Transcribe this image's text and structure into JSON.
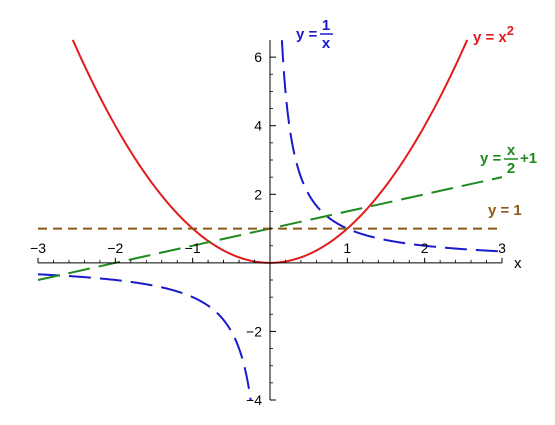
{
  "chart_data": {
    "type": "line",
    "title": "",
    "xlabel": "x",
    "ylabel": "",
    "xlim": [
      -3,
      3
    ],
    "ylim": [
      -4,
      6.5
    ],
    "grid": false,
    "x_ticks": [
      -3,
      -2,
      -1,
      1,
      2,
      3
    ],
    "x_tick_labels": [
      "−3",
      "−2",
      "−1",
      "1",
      "2",
      "3"
    ],
    "y_ticks": [
      -4,
      -2,
      2,
      4,
      6
    ],
    "y_tick_labels": [
      "−4",
      "−2",
      "2",
      "4",
      "6"
    ],
    "series": [
      {
        "name": "y = x²",
        "label_parts": {
          "left": "y = x",
          "exponent": "2"
        },
        "color": "#e31b1b",
        "dash": "solid",
        "x": [
          -2.55,
          -2.0,
          -1.5,
          -1.0,
          -0.5,
          0.0,
          0.5,
          1.0,
          1.5,
          2.0,
          2.55
        ],
        "y": [
          6.5,
          4.0,
          2.25,
          1.0,
          0.25,
          0.0,
          0.25,
          1.0,
          2.25,
          4.0,
          6.5
        ]
      },
      {
        "name": "y = 1/x",
        "label_parts": {
          "left": "y =",
          "numerator": "1",
          "denominator": "x"
        },
        "color": "#1a1acd",
        "dash": "long-dash",
        "x": [
          -3.0,
          -2.0,
          -1.0,
          -0.5,
          -0.33,
          -0.25,
          0.154,
          0.25,
          0.5,
          1.0,
          2.0,
          3.0
        ],
        "y": [
          -0.333,
          -0.5,
          -1.0,
          -2.0,
          -3.0,
          -4.0,
          6.5,
          4.0,
          2.0,
          1.0,
          0.5,
          0.333
        ]
      },
      {
        "name": "y = x/2 + 1",
        "label_parts": {
          "left": "y =",
          "numerator": "x",
          "denominator": "2",
          "right": "+1"
        },
        "color": "#1e8a1e",
        "dash": "long-dash",
        "x": [
          -3,
          3
        ],
        "y": [
          -0.5,
          2.5
        ]
      },
      {
        "name": "y = 1",
        "label_parts": {
          "left": "y = 1"
        },
        "color": "#8b5a1a",
        "dash": "short-dash",
        "x": [
          -3,
          3
        ],
        "y": [
          1,
          1
        ]
      }
    ]
  }
}
